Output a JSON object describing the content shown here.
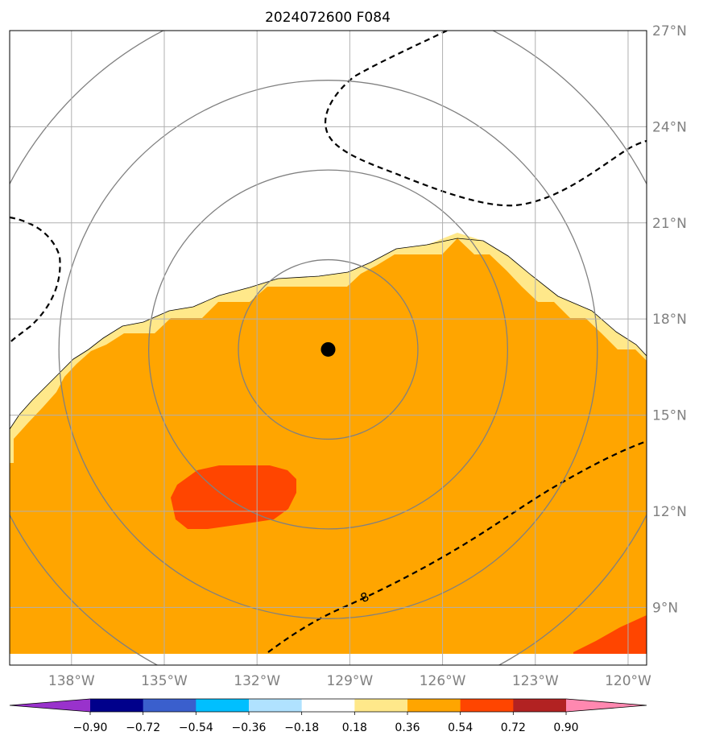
{
  "title": "2024072600 F084",
  "map": {
    "lon_range": [
      -140,
      -119.4
    ],
    "lat_range": [
      7.2,
      27
    ],
    "lon_ticks": [
      {
        "value": -138,
        "label": "138°W"
      },
      {
        "value": -135,
        "label": "135°W"
      },
      {
        "value": -132,
        "label": "132°W"
      },
      {
        "value": -129,
        "label": "129°W"
      },
      {
        "value": -126,
        "label": "126°W"
      },
      {
        "value": -123,
        "label": "123°W"
      },
      {
        "value": -120,
        "label": "120°W"
      }
    ],
    "lat_ticks": [
      {
        "value": 9,
        "label": "9°N"
      },
      {
        "value": 12,
        "label": "12°N"
      },
      {
        "value": 15,
        "label": "15°N"
      },
      {
        "value": 18,
        "label": "18°N"
      },
      {
        "value": 21,
        "label": "21°N"
      },
      {
        "value": 24,
        "label": "24°N"
      },
      {
        "value": 27,
        "label": "27°N"
      }
    ],
    "center": {
      "lon": -129.7,
      "lat": 17.05
    },
    "range_rings_deg": [
      2.8,
      5.6,
      8.4,
      11.2
    ],
    "contour_label": "8",
    "colors": {
      "field_orange": "#ffa500",
      "field_yellow": "#ffe88a",
      "field_red": "#ff4500",
      "ring": "#808080",
      "grid": "#b0b0b0",
      "contour": "#000000"
    }
  },
  "colorbar": {
    "colors": [
      "#9932cc",
      "#00008b",
      "#3a5fcd",
      "#00bfff",
      "#b0e2ff",
      "#ffffff",
      "#ffe88a",
      "#ffa500",
      "#ff4500",
      "#b22222",
      "#ff88b0"
    ],
    "labels": [
      "−0.90",
      "−0.72",
      "−0.54",
      "−0.36",
      "−0.18",
      "0.18",
      "0.36",
      "0.54",
      "0.72",
      "0.90"
    ]
  }
}
